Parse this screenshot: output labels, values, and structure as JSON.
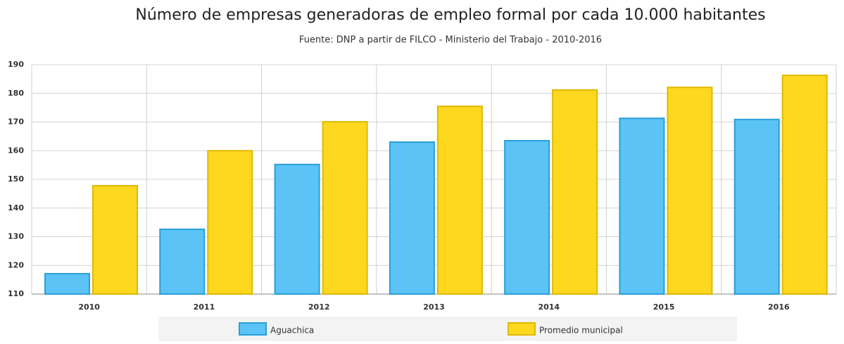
{
  "chart_data": {
    "type": "bar",
    "title": "Número de empresas generadoras de empleo formal por cada 10.000 habitantes",
    "subtitle": "Fuente: DNP a partir de FILCO - Ministerio del Trabajo - 2010-2016",
    "categories": [
      "2010",
      "2011",
      "2012",
      "2013",
      "2014",
      "2015",
      "2016"
    ],
    "series": [
      {
        "name": "Aguachica",
        "color": "#5bc3f5",
        "values": [
          117.1,
          132.6,
          155.2,
          163,
          163.5,
          171.3,
          170.9
        ]
      },
      {
        "name": "Promedio municipal",
        "color": "#fed81e",
        "values": [
          147.8,
          160,
          170.1,
          175.5,
          181.2,
          182.1,
          186.3
        ]
      }
    ],
    "ylim": [
      110,
      190
    ],
    "yticks": [
      110,
      120,
      130,
      140,
      150,
      160,
      170,
      180,
      190
    ],
    "grid": true
  }
}
